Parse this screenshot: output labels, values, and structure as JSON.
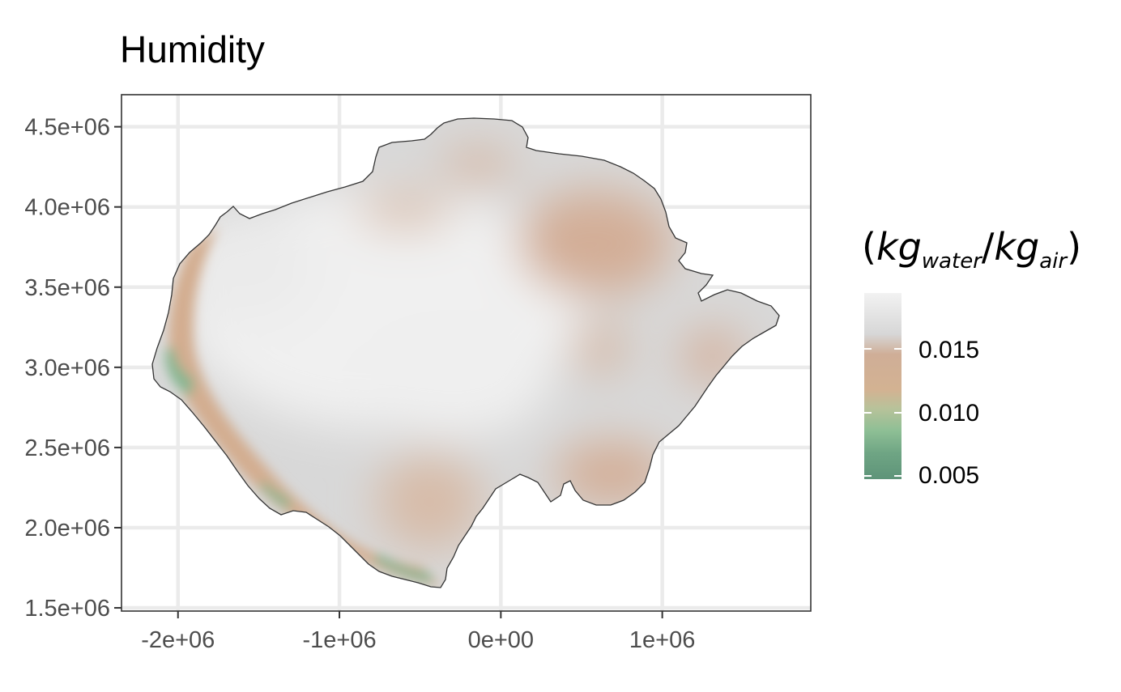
{
  "title": "Humidity",
  "axes": {
    "x_ticks": [
      {
        "value": -2000000,
        "label": "-2e+06"
      },
      {
        "value": -1000000,
        "label": "-1e+06"
      },
      {
        "value": 0,
        "label": "0e+00"
      },
      {
        "value": 1000000,
        "label": "1e+06"
      }
    ],
    "y_ticks": [
      {
        "value": 1500000,
        "label": "1.5e+06"
      },
      {
        "value": 2000000,
        "label": "2.0e+06"
      },
      {
        "value": 2500000,
        "label": "2.5e+06"
      },
      {
        "value": 3000000,
        "label": "3.0e+06"
      },
      {
        "value": 3500000,
        "label": "3.5e+06"
      },
      {
        "value": 4000000,
        "label": "4.0e+06"
      },
      {
        "value": 4500000,
        "label": "4.5e+06"
      }
    ],
    "xlim": [
      -2350000,
      1920000
    ],
    "ylim": [
      1480000,
      4700000
    ],
    "grid": true
  },
  "legend": {
    "title_parts": {
      "open": "(",
      "base1": "kg",
      "sub1": "water",
      "slash": "/",
      "base2": "kg",
      "sub2": "air",
      "close": ")"
    },
    "labels": [
      "0.015",
      "0.010",
      "0.005"
    ],
    "placement": "right"
  },
  "colors": {
    "high": "#f2f2f2",
    "mid_high": "#d6d6d6",
    "mid": "#d2ae95",
    "low": "#6fa584",
    "lowest": "#5e9479",
    "outline": "#333333",
    "grid": "#ebebeb"
  }
}
